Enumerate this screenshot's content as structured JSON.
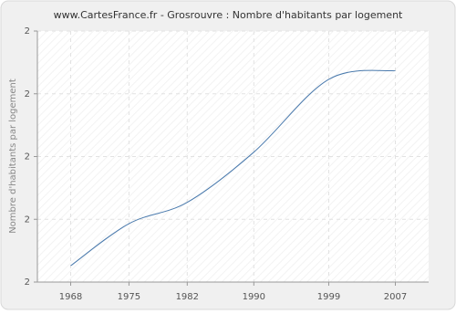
{
  "chart_data": {
    "type": "line",
    "title": "www.CartesFrance.fr - Grosrouvre : Nombre d'habitants par logement",
    "y_label": "Nombre d'habitants par logement",
    "x": [
      1968,
      1975,
      1982,
      1990,
      1999,
      2007
    ],
    "values": [
      1.826,
      1.893,
      1.927,
      2.007,
      2.123,
      2.137
    ],
    "color": "#4a7aad",
    "xlim": [
      1964,
      2011
    ],
    "xticks": [
      1968,
      1975,
      1982,
      1990,
      1999,
      2007
    ],
    "ylim": [
      1.8,
      2.2
    ],
    "yticks": [
      {
        "value": 1.8,
        "label": "2"
      },
      {
        "value": 1.9,
        "label": "2"
      },
      {
        "value": 2.0,
        "label": "2"
      },
      {
        "value": 2.1,
        "label": "2"
      },
      {
        "value": 2.2,
        "label": "2"
      }
    ],
    "grid": true
  }
}
